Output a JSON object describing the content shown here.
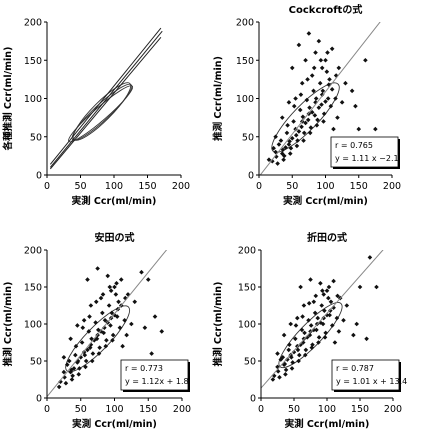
{
  "chart_data": [
    {
      "type": "line",
      "title": "",
      "xlabel": "実測 Ccr(ml/min)",
      "ylabel": "各種推測 Ccr(ml/min)",
      "xlim": [
        0,
        200
      ],
      "ylim": [
        0,
        200
      ],
      "xticks": [
        "0",
        "50",
        "100",
        "150",
        "200"
      ],
      "yticks": [
        "0",
        "50",
        "100",
        "150",
        "200"
      ],
      "grid": false,
      "series": [
        {
          "values": [
            [
              5,
              8
            ],
            [
              170,
              180
            ]
          ],
          "kind": "regression-line"
        },
        {
          "values": [
            [
              5,
              10
            ],
            [
              172,
              188
            ]
          ],
          "kind": "regression-line"
        },
        {
          "values": [
            [
              5,
              14
            ],
            [
              170,
              192
            ]
          ],
          "kind": "regression-line"
        }
      ],
      "ellipses": [
        {
          "center": [
            80,
            80
          ],
          "angle_deg": 41,
          "semi_major": 118,
          "semi_minor": 18
        },
        {
          "center": [
            82,
            82
          ],
          "angle_deg": 43,
          "semi_major": 112,
          "semi_minor": 22
        },
        {
          "center": [
            82,
            83
          ],
          "angle_deg": 45,
          "semi_major": 110,
          "semi_minor": 26
        }
      ]
    },
    {
      "type": "scatter",
      "title": "Cockcroftの式",
      "xlabel": "実測 Ccr(ml/min)",
      "ylabel": "推測 Ccr(ml/min)",
      "xlim": [
        0,
        200
      ],
      "ylim": [
        0,
        200
      ],
      "xticks": [
        "0",
        "50",
        "100",
        "150",
        "200"
      ],
      "yticks": [
        "0",
        "50",
        "100",
        "150",
        "200"
      ],
      "grid": false,
      "regression": {
        "slope": 1.11,
        "intercept": -2.1
      },
      "stats": {
        "r": "r = 0.765",
        "eq": "y = 1.11 x −2.1"
      },
      "ellipse": {
        "center": [
          70,
          75
        ],
        "angle_deg": 46,
        "semi_major": 130,
        "semi_minor": 35
      },
      "points": [
        [
          35,
          28
        ],
        [
          40,
          36
        ],
        [
          45,
          40
        ],
        [
          50,
          48
        ],
        [
          55,
          60
        ],
        [
          60,
          57
        ],
        [
          65,
          70
        ],
        [
          70,
          68
        ],
        [
          75,
          80
        ],
        [
          80,
          82
        ],
        [
          85,
          95
        ],
        [
          90,
          88
        ],
        [
          95,
          105
        ],
        [
          100,
          96
        ],
        [
          105,
          118
        ],
        [
          110,
          112
        ],
        [
          30,
          40
        ],
        [
          38,
          25
        ],
        [
          42,
          55
        ],
        [
          48,
          35
        ],
        [
          52,
          70
        ],
        [
          58,
          45
        ],
        [
          62,
          85
        ],
        [
          68,
          55
        ],
        [
          72,
          98
        ],
        [
          78,
          62
        ],
        [
          82,
          110
        ],
        [
          88,
          72
        ],
        [
          92,
          120
        ],
        [
          98,
          80
        ],
        [
          102,
          135
        ],
        [
          108,
          90
        ],
        [
          20,
          18
        ],
        [
          25,
          30
        ],
        [
          28,
          15
        ],
        [
          33,
          45
        ],
        [
          37,
          20
        ],
        [
          43,
          65
        ],
        [
          47,
          28
        ],
        [
          53,
          90
        ],
        [
          57,
          38
        ],
        [
          63,
          105
        ],
        [
          67,
          45
        ],
        [
          73,
          125
        ],
        [
          77,
          55
        ],
        [
          83,
          140
        ],
        [
          87,
          65
        ],
        [
          93,
          150
        ],
        [
          97,
          70
        ],
        [
          103,
          160
        ],
        [
          115,
          100
        ],
        [
          120,
          140
        ],
        [
          125,
          95
        ],
        [
          130,
          120
        ],
        [
          60,
          170
        ],
        [
          75,
          185
        ],
        [
          90,
          175
        ],
        [
          85,
          160
        ],
        [
          70,
          150
        ],
        [
          50,
          140
        ],
        [
          140,
          110
        ],
        [
          150,
          60
        ],
        [
          160,
          150
        ],
        [
          175,
          60
        ],
        [
          145,
          90
        ],
        [
          112,
          60
        ],
        [
          118,
          75
        ],
        [
          55,
          100
        ],
        [
          45,
          95
        ],
        [
          35,
          75
        ],
        [
          25,
          50
        ],
        [
          22,
          35
        ],
        [
          15,
          20
        ],
        [
          65,
          120
        ],
        [
          80,
          130
        ],
        [
          95,
          140
        ],
        [
          100,
          150
        ],
        [
          110,
          165
        ],
        [
          56,
          52
        ],
        [
          64,
          63
        ],
        [
          74,
          72
        ],
        [
          84,
          78
        ],
        [
          94,
          92
        ],
        [
          104,
          100
        ],
        [
          46,
          44
        ],
        [
          36,
          33
        ],
        [
          26,
          24
        ],
        [
          66,
          76
        ],
        [
          76,
          88
        ],
        [
          86,
          100
        ],
        [
          96,
          110
        ],
        [
          106,
          125
        ],
        [
          116,
          130
        ]
      ]
    },
    {
      "type": "scatter",
      "title": "安田の式",
      "xlabel": "実測 Ccr(ml/min)",
      "ylabel": "推測 Ccr(ml/min)",
      "xlim": [
        0,
        200
      ],
      "ylim": [
        0,
        200
      ],
      "xticks": [
        "0",
        "50",
        "100",
        "150",
        "200"
      ],
      "yticks": [
        "0",
        "50",
        "100",
        "150",
        "200"
      ],
      "grid": false,
      "regression": {
        "slope": 1.12,
        "intercept": 1.8
      },
      "stats": {
        "r": "r = 0.773",
        "eq": "y = 1.12x + 1.8"
      },
      "ellipse": {
        "center": [
          75,
          80
        ],
        "angle_deg": 46,
        "semi_major": 125,
        "semi_minor": 33
      },
      "points": [
        [
          35,
          35
        ],
        [
          40,
          40
        ],
        [
          45,
          48
        ],
        [
          50,
          55
        ],
        [
          55,
          62
        ],
        [
          60,
          65
        ],
        [
          65,
          72
        ],
        [
          70,
          78
        ],
        [
          75,
          85
        ],
        [
          80,
          90
        ],
        [
          85,
          95
        ],
        [
          90,
          102
        ],
        [
          95,
          108
        ],
        [
          100,
          112
        ],
        [
          105,
          120
        ],
        [
          110,
          125
        ],
        [
          30,
          45
        ],
        [
          38,
          30
        ],
        [
          42,
          58
        ],
        [
          48,
          40
        ],
        [
          52,
          75
        ],
        [
          58,
          50
        ],
        [
          62,
          90
        ],
        [
          68,
          60
        ],
        [
          72,
          102
        ],
        [
          78,
          68
        ],
        [
          82,
          115
        ],
        [
          88,
          78
        ],
        [
          92,
          125
        ],
        [
          98,
          85
        ],
        [
          102,
          140
        ],
        [
          108,
          95
        ],
        [
          20,
          22
        ],
        [
          25,
          35
        ],
        [
          28,
          20
        ],
        [
          33,
          50
        ],
        [
          37,
          25
        ],
        [
          43,
          70
        ],
        [
          47,
          32
        ],
        [
          53,
          95
        ],
        [
          57,
          42
        ],
        [
          63,
          110
        ],
        [
          67,
          50
        ],
        [
          73,
          130
        ],
        [
          77,
          60
        ],
        [
          83,
          140
        ],
        [
          87,
          70
        ],
        [
          93,
          150
        ],
        [
          97,
          78
        ],
        [
          103,
          155
        ],
        [
          115,
          105
        ],
        [
          120,
          140
        ],
        [
          125,
          100
        ],
        [
          130,
          130
        ],
        [
          60,
          160
        ],
        [
          75,
          175
        ],
        [
          90,
          165
        ],
        [
          140,
          170
        ],
        [
          150,
          160
        ],
        [
          160,
          110
        ],
        [
          155,
          60
        ],
        [
          145,
          95
        ],
        [
          112,
          70
        ],
        [
          118,
          85
        ],
        [
          55,
          105
        ],
        [
          45,
          98
        ],
        [
          35,
          80
        ],
        [
          25,
          55
        ],
        [
          18,
          15
        ],
        [
          65,
          125
        ],
        [
          80,
          135
        ],
        [
          95,
          145
        ],
        [
          100,
          150
        ],
        [
          110,
          160
        ],
        [
          56,
          58
        ],
        [
          64,
          68
        ],
        [
          74,
          80
        ],
        [
          84,
          88
        ],
        [
          94,
          98
        ],
        [
          104,
          110
        ],
        [
          46,
          50
        ],
        [
          36,
          38
        ],
        [
          26,
          28
        ],
        [
          66,
          80
        ],
        [
          76,
          92
        ],
        [
          86,
          105
        ],
        [
          96,
          115
        ],
        [
          106,
          130
        ],
        [
          116,
          135
        ],
        [
          170,
          90
        ]
      ]
    },
    {
      "type": "scatter",
      "title": "折田の式",
      "xlabel": "実測 Ccr(ml/min)",
      "ylabel": "推測 Ccr(ml/min)",
      "xlim": [
        0,
        200
      ],
      "ylim": [
        0,
        200
      ],
      "xticks": [
        "0",
        "50",
        "100",
        "150",
        "200"
      ],
      "yticks": [
        "0",
        "50",
        "100",
        "150",
        "200"
      ],
      "grid": false,
      "regression": {
        "slope": 1.01,
        "intercept": 13.4
      },
      "stats": {
        "r": "r = 0.787",
        "eq": "y = 1.01 x + 13.4"
      },
      "ellipse": {
        "center": [
          75,
          85
        ],
        "angle_deg": 46,
        "semi_major": 125,
        "semi_minor": 32
      },
      "points": [
        [
          35,
          45
        ],
        [
          40,
          52
        ],
        [
          45,
          58
        ],
        [
          50,
          62
        ],
        [
          55,
          70
        ],
        [
          60,
          72
        ],
        [
          65,
          80
        ],
        [
          70,
          82
        ],
        [
          75,
          90
        ],
        [
          80,
          92
        ],
        [
          85,
          100
        ],
        [
          90,
          102
        ],
        [
          95,
          108
        ],
        [
          100,
          112
        ],
        [
          105,
          118
        ],
        [
          110,
          122
        ],
        [
          30,
          52
        ],
        [
          38,
          38
        ],
        [
          42,
          65
        ],
        [
          48,
          48
        ],
        [
          52,
          80
        ],
        [
          58,
          58
        ],
        [
          62,
          92
        ],
        [
          68,
          65
        ],
        [
          72,
          105
        ],
        [
          78,
          72
        ],
        [
          82,
          115
        ],
        [
          88,
          82
        ],
        [
          92,
          125
        ],
        [
          98,
          88
        ],
        [
          102,
          135
        ],
        [
          108,
          98
        ],
        [
          20,
          30
        ],
        [
          25,
          42
        ],
        [
          28,
          28
        ],
        [
          33,
          55
        ],
        [
          37,
          32
        ],
        [
          43,
          72
        ],
        [
          47,
          40
        ],
        [
          53,
          98
        ],
        [
          57,
          50
        ],
        [
          63,
          110
        ],
        [
          67,
          58
        ],
        [
          73,
          128
        ],
        [
          77,
          68
        ],
        [
          83,
          138
        ],
        [
          87,
          75
        ],
        [
          93,
          145
        ],
        [
          97,
          82
        ],
        [
          103,
          150
        ],
        [
          115,
          108
        ],
        [
          120,
          135
        ],
        [
          125,
          105
        ],
        [
          130,
          125
        ],
        [
          60,
          150
        ],
        [
          75,
          160
        ],
        [
          90,
          155
        ],
        [
          150,
          150
        ],
        [
          165,
          190
        ],
        [
          175,
          150
        ],
        [
          160,
          80
        ],
        [
          145,
          100
        ],
        [
          112,
          75
        ],
        [
          118,
          90
        ],
        [
          55,
          108
        ],
        [
          45,
          100
        ],
        [
          35,
          85
        ],
        [
          25,
          60
        ],
        [
          18,
          25
        ],
        [
          65,
          125
        ],
        [
          80,
          130
        ],
        [
          95,
          140
        ],
        [
          100,
          145
        ],
        [
          110,
          158
        ],
        [
          56,
          65
        ],
        [
          64,
          75
        ],
        [
          74,
          85
        ],
        [
          84,
          92
        ],
        [
          94,
          100
        ],
        [
          104,
          112
        ],
        [
          46,
          55
        ],
        [
          36,
          46
        ],
        [
          26,
          36
        ],
        [
          66,
          88
        ],
        [
          76,
          98
        ],
        [
          86,
          108
        ],
        [
          96,
          118
        ],
        [
          106,
          130
        ],
        [
          116,
          138
        ],
        [
          140,
          85
        ]
      ]
    }
  ]
}
